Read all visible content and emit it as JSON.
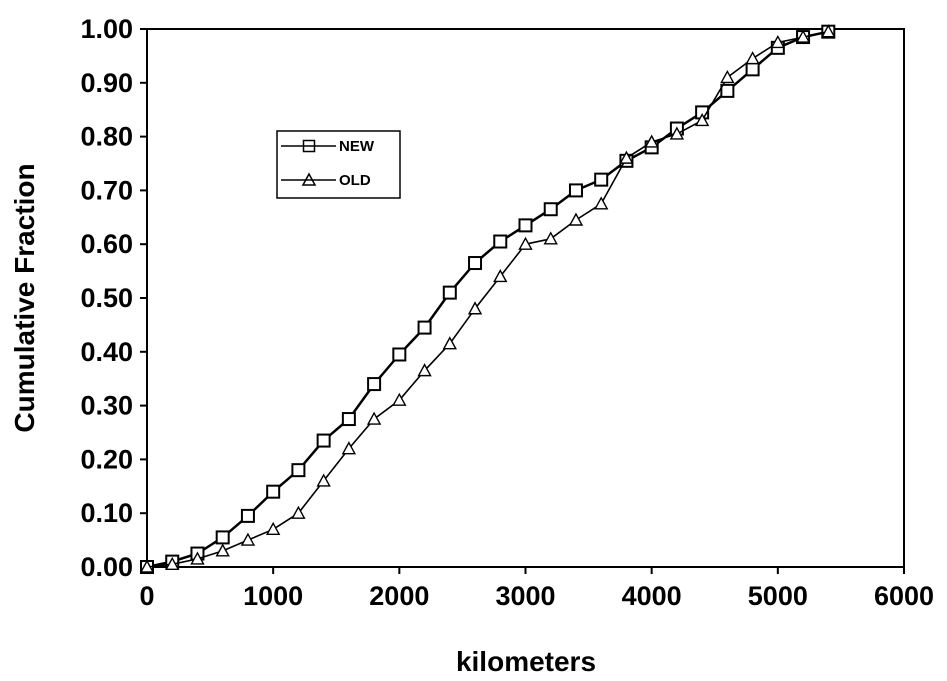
{
  "chart_data": {
    "type": "line",
    "title": "",
    "xlabel": "kilometers",
    "ylabel": "Cumulative Fraction",
    "xlim": [
      0,
      6000
    ],
    "ylim": [
      0,
      1.0
    ],
    "x_ticks": [
      "0",
      "1000",
      "2000",
      "3000",
      "4000",
      "5000",
      "6000"
    ],
    "y_ticks": [
      "0.00",
      "0.10",
      "0.20",
      "0.30",
      "0.40",
      "0.50",
      "0.60",
      "0.70",
      "0.80",
      "0.90",
      "1.00"
    ],
    "grid": false,
    "legend_position": "upper-left",
    "series": [
      {
        "name": "NEW",
        "marker": "square",
        "color": "#000000",
        "x": [
          0,
          200,
          400,
          600,
          800,
          1000,
          1200,
          1400,
          1600,
          1800,
          2000,
          2200,
          2400,
          2600,
          2800,
          3000,
          3200,
          3400,
          3600,
          3800,
          4000,
          4200,
          4400,
          4600,
          4800,
          5000,
          5200,
          5400
        ],
        "y": [
          0.0,
          0.01,
          0.025,
          0.055,
          0.095,
          0.14,
          0.18,
          0.235,
          0.275,
          0.34,
          0.395,
          0.445,
          0.51,
          0.565,
          0.605,
          0.635,
          0.665,
          0.7,
          0.72,
          0.755,
          0.78,
          0.815,
          0.845,
          0.885,
          0.925,
          0.965,
          0.985,
          0.995
        ]
      },
      {
        "name": "OLD",
        "marker": "triangle",
        "color": "#000000",
        "x": [
          0,
          200,
          400,
          600,
          800,
          1000,
          1200,
          1400,
          1600,
          1800,
          2000,
          2200,
          2400,
          2600,
          2800,
          3000,
          3200,
          3400,
          3600,
          3800,
          4000,
          4200,
          4400,
          4600,
          4800,
          5000,
          5200,
          5400
        ],
        "y": [
          0.0,
          0.005,
          0.015,
          0.03,
          0.05,
          0.07,
          0.1,
          0.16,
          0.22,
          0.275,
          0.31,
          0.365,
          0.415,
          0.48,
          0.54,
          0.6,
          0.61,
          0.645,
          0.675,
          0.76,
          0.79,
          0.805,
          0.83,
          0.91,
          0.945,
          0.975,
          0.985,
          0.995
        ]
      }
    ]
  }
}
